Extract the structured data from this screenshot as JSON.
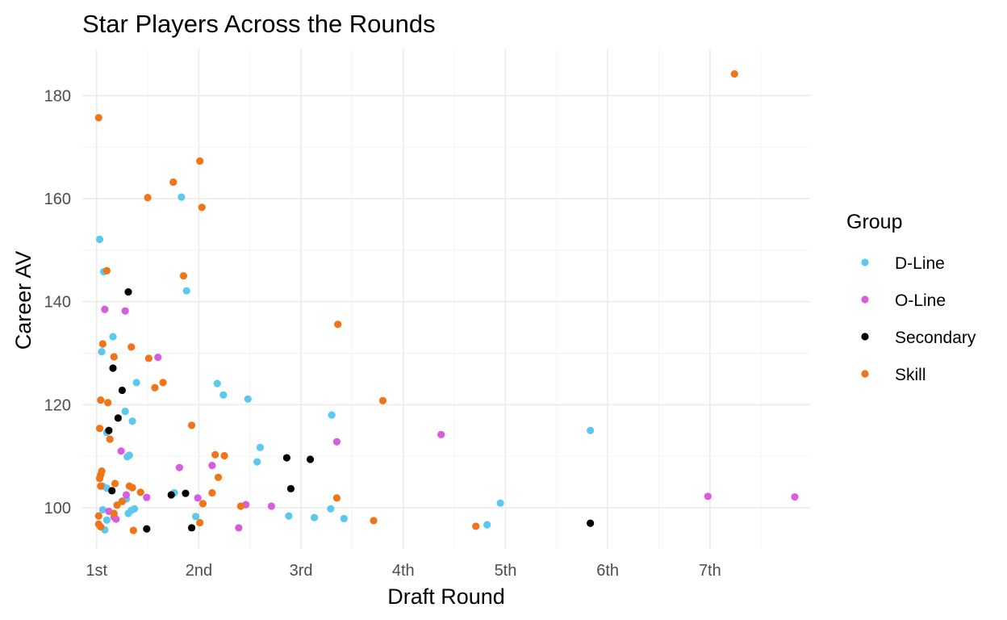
{
  "chart_data": {
    "type": "scatter",
    "title": "Star Players Across the Rounds",
    "xlabel": "Draft Round",
    "ylabel": "Career AV",
    "xlim": [
      0.86,
      7.98
    ],
    "ylim": [
      92,
      189
    ],
    "x_ticks": [
      {
        "value": 1,
        "label": "1st"
      },
      {
        "value": 2,
        "label": "2nd"
      },
      {
        "value": 3,
        "label": "3rd"
      },
      {
        "value": 4,
        "label": "4th"
      },
      {
        "value": 5,
        "label": "5th"
      },
      {
        "value": 6,
        "label": "6th"
      },
      {
        "value": 7,
        "label": "7th"
      }
    ],
    "y_ticks": [
      100,
      120,
      140,
      160,
      180
    ],
    "grid": true,
    "legend": {
      "title": "Group",
      "position": "right"
    },
    "series": [
      {
        "name": "D-Line",
        "color": "#5bc8ef",
        "points": [
          [
            1.03,
            152.1
          ],
          [
            1.07,
            145.8
          ],
          [
            1.05,
            130.3
          ],
          [
            1.16,
            133.2
          ],
          [
            1.28,
            118.7
          ],
          [
            1.35,
            116.8
          ],
          [
            1.39,
            124.3
          ],
          [
            1.32,
            110.2
          ],
          [
            1.3,
            109.9
          ],
          [
            1.1,
            114.6
          ],
          [
            1.06,
            104.2
          ],
          [
            1.1,
            103.8
          ],
          [
            1.06,
            99.6
          ],
          [
            1.1,
            97.6
          ],
          [
            1.08,
            95.7
          ],
          [
            1.25,
            101.3
          ],
          [
            1.31,
            98.9
          ],
          [
            1.34,
            99.5
          ],
          [
            1.37,
            99.8
          ],
          [
            1.29,
            101.7
          ],
          [
            1.83,
            160.3
          ],
          [
            1.88,
            142.1
          ],
          [
            1.76,
            102.9
          ],
          [
            1.97,
            98.3
          ],
          [
            2.18,
            124.1
          ],
          [
            2.24,
            121.9
          ],
          [
            2.48,
            121.1
          ],
          [
            2.6,
            111.7
          ],
          [
            2.57,
            108.9
          ],
          [
            2.88,
            98.4
          ],
          [
            3.13,
            98.1
          ],
          [
            3.3,
            118.0
          ],
          [
            3.29,
            99.8
          ],
          [
            3.42,
            97.9
          ],
          [
            4.82,
            96.7
          ],
          [
            4.95,
            100.9
          ],
          [
            5.83,
            115.0
          ]
        ]
      },
      {
        "name": "O-Line",
        "color": "#d85be0",
        "points": [
          [
            1.08,
            138.5
          ],
          [
            1.28,
            138.2
          ],
          [
            1.24,
            111.0
          ],
          [
            1.29,
            102.5
          ],
          [
            1.12,
            99.3
          ],
          [
            1.17,
            98.2
          ],
          [
            1.19,
            97.8
          ],
          [
            1.49,
            102.0
          ],
          [
            1.6,
            129.2
          ],
          [
            1.81,
            107.8
          ],
          [
            1.99,
            101.9
          ],
          [
            2.13,
            108.2
          ],
          [
            2.39,
            96.1
          ],
          [
            2.46,
            100.6
          ],
          [
            2.71,
            100.3
          ],
          [
            3.35,
            112.8
          ],
          [
            4.37,
            114.2
          ],
          [
            6.98,
            102.2
          ],
          [
            7.83,
            102.1
          ]
        ]
      },
      {
        "name": "Secondary",
        "color": "#000000",
        "points": [
          [
            1.31,
            141.9
          ],
          [
            1.16,
            127.1
          ],
          [
            1.25,
            122.8
          ],
          [
            1.21,
            117.4
          ],
          [
            1.12,
            115.0
          ],
          [
            1.15,
            103.3
          ],
          [
            1.49,
            95.9
          ],
          [
            1.73,
            102.5
          ],
          [
            1.87,
            102.8
          ],
          [
            1.93,
            96.1
          ],
          [
            2.86,
            109.7
          ],
          [
            2.9,
            103.7
          ],
          [
            3.09,
            109.4
          ],
          [
            5.83,
            97.0
          ]
        ]
      },
      {
        "name": "Skill",
        "color": "#f07418",
        "points": [
          [
            1.02,
            175.7
          ],
          [
            1.1,
            146.0
          ],
          [
            1.06,
            131.8
          ],
          [
            1.34,
            131.2
          ],
          [
            1.17,
            129.3
          ],
          [
            1.04,
            120.9
          ],
          [
            1.11,
            120.4
          ],
          [
            1.03,
            115.4
          ],
          [
            1.13,
            113.3
          ],
          [
            1.05,
            107.1
          ],
          [
            1.04,
            106.4
          ],
          [
            1.03,
            105.7
          ],
          [
            1.04,
            104.2
          ],
          [
            1.18,
            104.7
          ],
          [
            1.32,
            104.2
          ],
          [
            1.35,
            103.9
          ],
          [
            1.43,
            103.0
          ],
          [
            1.02,
            98.4
          ],
          [
            1.02,
            96.8
          ],
          [
            1.04,
            96.3
          ],
          [
            1.17,
            98.9
          ],
          [
            1.2,
            100.5
          ],
          [
            1.25,
            101.2
          ],
          [
            1.36,
            95.6
          ],
          [
            1.5,
            160.2
          ],
          [
            1.51,
            129.0
          ],
          [
            1.57,
            123.3
          ],
          [
            1.65,
            124.3
          ],
          [
            1.75,
            163.2
          ],
          [
            1.85,
            145.0
          ],
          [
            2.01,
            167.3
          ],
          [
            2.03,
            158.3
          ],
          [
            1.93,
            116.0
          ],
          [
            2.01,
            97.1
          ],
          [
            2.04,
            100.8
          ],
          [
            2.13,
            102.9
          ],
          [
            2.16,
            110.3
          ],
          [
            2.19,
            105.9
          ],
          [
            2.25,
            110.1
          ],
          [
            2.41,
            100.3
          ],
          [
            3.36,
            135.6
          ],
          [
            3.35,
            101.9
          ],
          [
            3.71,
            97.5
          ],
          [
            3.8,
            120.8
          ],
          [
            4.71,
            96.4
          ],
          [
            7.24,
            184.2
          ]
        ]
      }
    ]
  }
}
